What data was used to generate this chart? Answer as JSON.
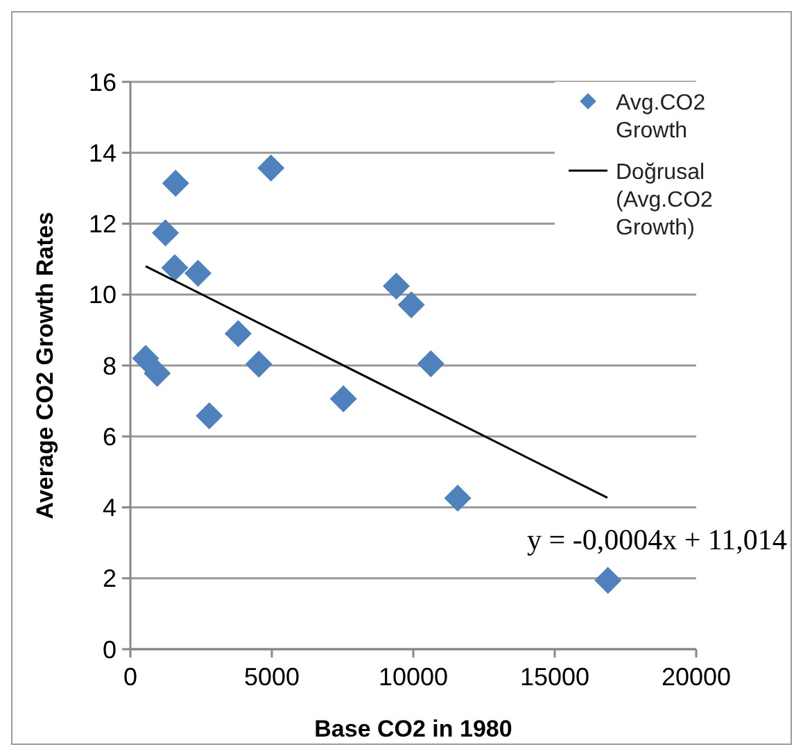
{
  "chart_data": {
    "type": "scatter",
    "xlabel": "Base CO2 in 1980",
    "ylabel": "Average CO2 Growth Rates",
    "xlim": [
      0,
      20000
    ],
    "xticks": [
      0,
      5000,
      10000,
      15000,
      20000
    ],
    "ylim": [
      0,
      16
    ],
    "yticks": [
      0,
      2,
      4,
      6,
      8,
      10,
      12,
      14,
      16
    ],
    "grid": "y",
    "legend": "top right",
    "marker": "diamond",
    "series": [
      {
        "name": "Avg.CO2 Growth",
        "color": "#4f81bd",
        "x": [
          540,
          950,
          1240,
          1600,
          1570,
          2390,
          2790,
          3810,
          4540,
          4970,
          7530,
          9400,
          9930,
          10620,
          11570,
          16880
        ],
        "values": [
          8.2,
          7.78,
          11.74,
          13.14,
          10.76,
          10.6,
          6.58,
          8.9,
          8.04,
          13.57,
          7.06,
          10.24,
          9.71,
          8.05,
          4.26,
          1.94
        ]
      },
      {
        "name": "Doğrusal (Avg.CO2 Growth)",
        "type": "line",
        "color": "#000000",
        "line_style": "solid",
        "marker": "none",
        "x": [
          540,
          16860
        ],
        "values": [
          10.8,
          4.27
        ]
      }
    ],
    "annotations": [
      "y = -0,0004x + 11,014"
    ]
  }
}
